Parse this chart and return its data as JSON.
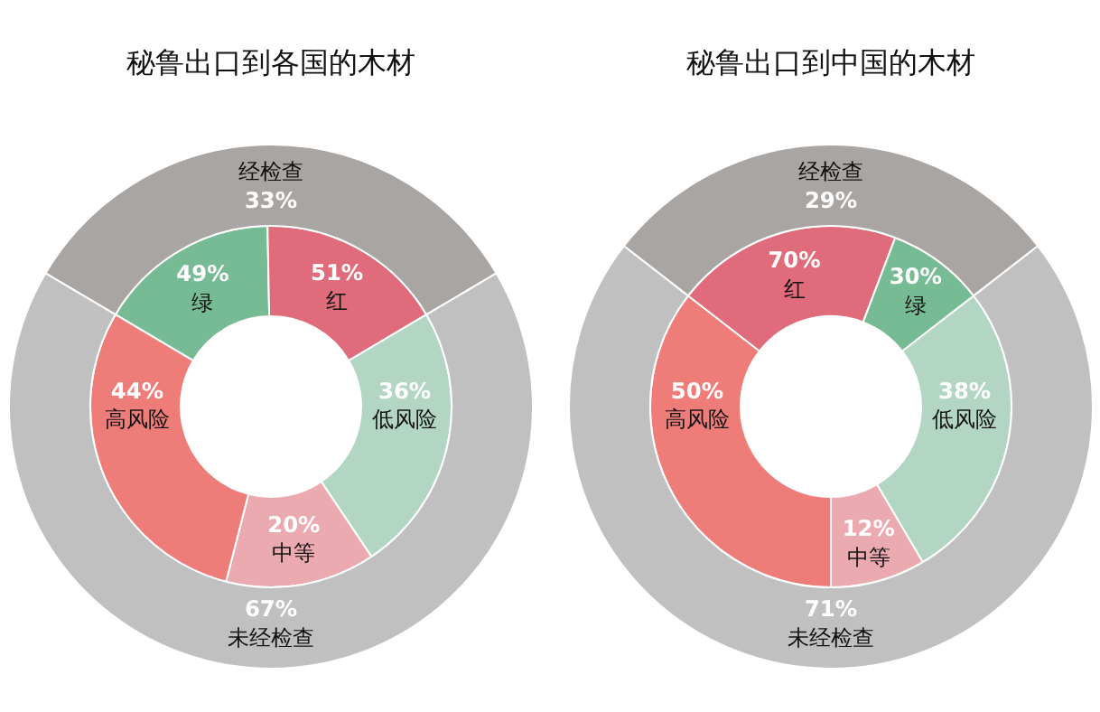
{
  "chart_data": [
    {
      "type": "donut",
      "title": "秘鲁出口到各国的木材",
      "categories": [
        "绿",
        "红",
        "低风险",
        "中等",
        "高风险",
        null,
        null
      ],
      "colors": [
        "#77bb95",
        "#e06b7b",
        "#b3d6c4",
        "#ebaab0",
        "#ee7d7a",
        "#a9a5a2",
        "#c0c0c0"
      ],
      "series": [
        {
          "values": [
            16.2,
            16.8,
            24.1,
            13.4,
            29.5,
            null,
            null
          ]
        },
        {
          "values": [
            null,
            null,
            null,
            null,
            null,
            33,
            67
          ],
          "value_labels": [
            null,
            null,
            null,
            null,
            null,
            "33%",
            "67%"
          ]
        }
      ],
      "annotations": [
        "49%",
        "51%",
        "36%",
        "20%",
        "44%",
        "经检查",
        "未经检查"
      ]
    },
    {
      "type": "donut",
      "title": "秘鲁出口到中国的木材",
      "categories": [
        "红",
        "绿",
        "低风险",
        "中等",
        "高风险",
        null,
        null
      ],
      "colors": [
        "#e06b7b",
        "#77bb95",
        "#b3d6c4",
        "#ebaab0",
        "#ee7d7a",
        "#a9a5a2",
        "#c0c0c0"
      ],
      "series": [
        {
          "values": [
            20.3,
            8.7,
            27.0,
            8.5,
            35.5,
            null,
            null
          ]
        },
        {
          "values": [
            null,
            null,
            null,
            null,
            null,
            29,
            71
          ],
          "value_labels": [
            null,
            null,
            null,
            null,
            null,
            "29%",
            "71%"
          ]
        }
      ],
      "annotations": [
        "70%",
        "30%",
        "38%",
        "12%",
        "50%",
        "经检查",
        "未经检查"
      ]
    }
  ]
}
